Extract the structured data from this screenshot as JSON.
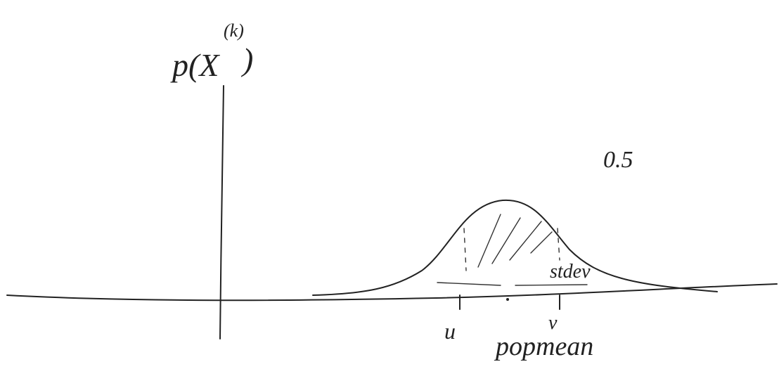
{
  "y_label": {
    "text": "p(X",
    "sup": "(k)",
    "close": ")"
  },
  "annotations": {
    "level": "0.5",
    "spread": "stdev",
    "left_mark": "u",
    "right_mark": "v",
    "center": "popmean"
  }
}
